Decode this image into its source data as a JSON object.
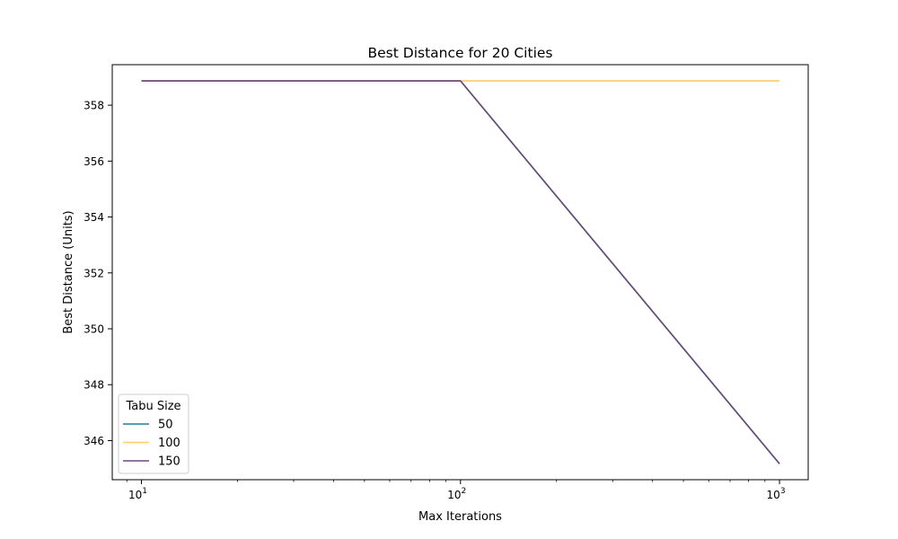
{
  "chart_data": {
    "type": "line",
    "title": "Best Distance for 20 Cities",
    "xlabel": "Max Iterations",
    "ylabel": "Best Distance (Units)",
    "x_scale": "log",
    "xlim": [
      8.1,
      1230
    ],
    "ylim": [
      344.6,
      359.45
    ],
    "x_ticks": [
      {
        "value": 10,
        "base": "10",
        "exp": "1"
      },
      {
        "value": 100,
        "base": "10",
        "exp": "2"
      },
      {
        "value": 1000,
        "base": "10",
        "exp": "3"
      }
    ],
    "y_ticks": [
      346,
      348,
      350,
      352,
      354,
      356,
      358
    ],
    "grid": false,
    "legend": {
      "title": "Tabu Size",
      "position": "lower-left"
    },
    "x": [
      10,
      100,
      1000
    ],
    "series": [
      {
        "name": "50",
        "color": "#1a80a0",
        "values": [
          358.87,
          358.87,
          345.17
        ]
      },
      {
        "name": "100",
        "color": "#ffcc66",
        "values": [
          358.87,
          358.87,
          358.87
        ]
      },
      {
        "name": "150",
        "color": "#6b4a7a",
        "values": [
          358.87,
          358.87,
          345.17
        ]
      }
    ]
  }
}
